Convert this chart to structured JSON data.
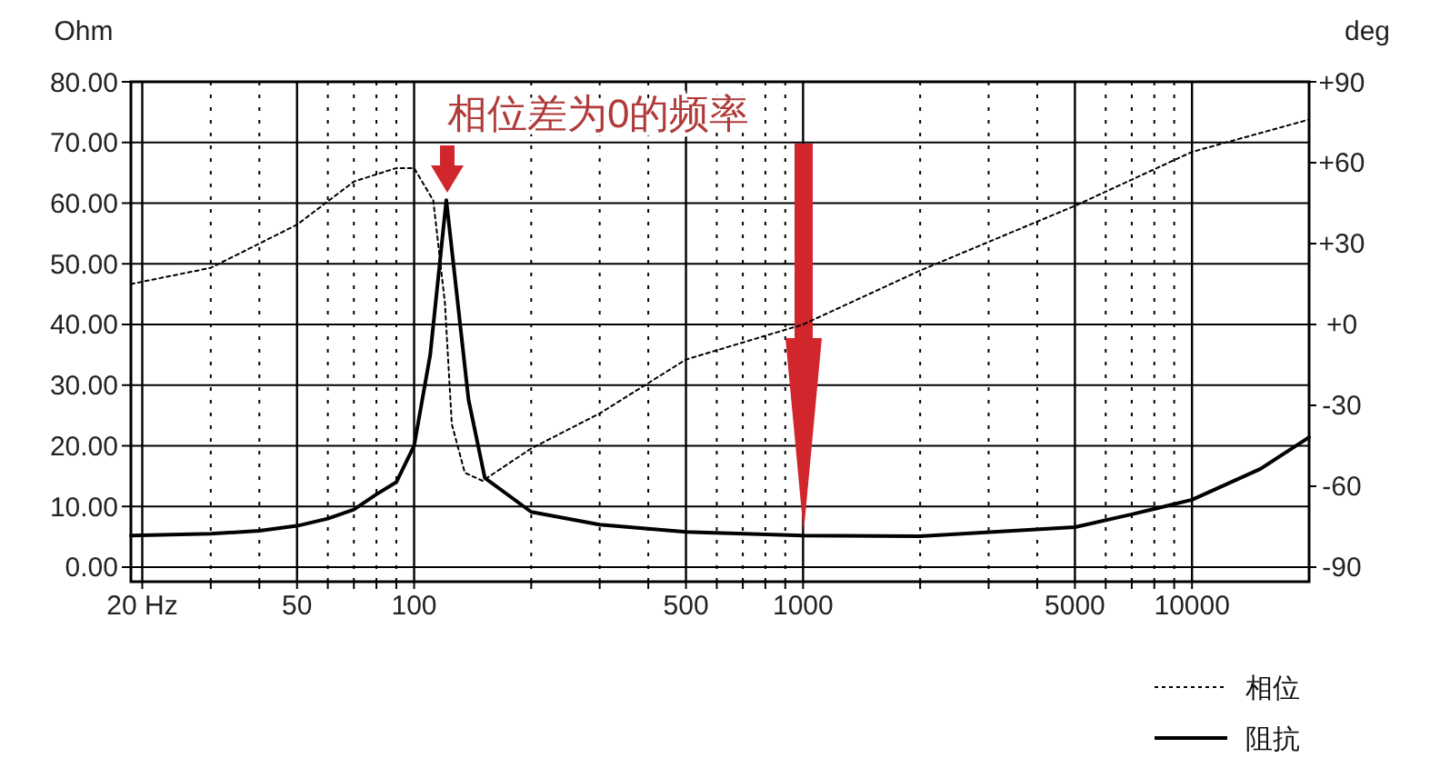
{
  "chart_data": {
    "type": "line",
    "ylabel": "Ohm",
    "y2label": "deg",
    "log": "x",
    "xlim": [
      18.7,
      20000
    ],
    "xticks": [
      {
        "value": 20,
        "label": "20 Hz"
      },
      {
        "value": 30,
        "label": null
      },
      {
        "value": 40,
        "label": null
      },
      50,
      {
        "value": 60,
        "label": null
      },
      {
        "value": 70,
        "label": null
      },
      {
        "value": 80,
        "label": null
      },
      {
        "value": 90,
        "label": null
      },
      100,
      {
        "value": 200,
        "label": null
      },
      {
        "value": 300,
        "label": null
      },
      {
        "value": 400,
        "label": null
      },
      500,
      {
        "value": 600,
        "label": null
      },
      {
        "value": 700,
        "label": null
      },
      {
        "value": 800,
        "label": null
      },
      {
        "value": 900,
        "label": null
      },
      1000,
      {
        "value": 2000,
        "label": null
      },
      {
        "value": 3000,
        "label": null
      },
      {
        "value": 4000,
        "label": null
      },
      5000,
      {
        "value": 6000,
        "label": null
      },
      {
        "value": 7000,
        "label": null
      },
      {
        "value": 8000,
        "label": null
      },
      {
        "value": 9000,
        "label": null
      },
      10000
    ],
    "ylim": [
      -2.4,
      80
    ],
    "yticks": [
      {
        "value": 0,
        "label": "0.00"
      },
      {
        "value": 10,
        "label": "10.00"
      },
      {
        "value": 20,
        "label": "20.00"
      },
      {
        "value": 30,
        "label": "30.00"
      },
      {
        "value": 40,
        "label": "40.00"
      },
      {
        "value": 50,
        "label": "50.00"
      },
      {
        "value": 60,
        "label": "60.00"
      },
      {
        "value": 70,
        "label": "70.00"
      },
      {
        "value": 80,
        "label": "80.00"
      }
    ],
    "y2lim": [
      -95.4,
      90
    ],
    "y2ticks": [
      {
        "value": 90,
        "label": "+90"
      },
      {
        "value": 60,
        "label": "+60"
      },
      {
        "value": 30,
        "label": "+30"
      },
      {
        "value": 0,
        "label": "+0"
      },
      -30,
      -60,
      -90
    ],
    "grid": true,
    "legend": "bottom right",
    "annotations": [
      "相位差为0的频率"
    ],
    "series": [
      {
        "name": "相位",
        "color": "#000000",
        "axis": "y2",
        "line_style": "dotted",
        "x": [
          18.7,
          30,
          50,
          70,
          90,
          100,
          112,
          120,
          125,
          135,
          150,
          200,
          300,
          500,
          1000,
          2000,
          5000,
          10000,
          20000
        ],
        "values": [
          15,
          21,
          37,
          53,
          58,
          58,
          46,
          8,
          -37,
          -55,
          -58,
          -46,
          -33,
          -13,
          0,
          20,
          44,
          64,
          76
        ]
      },
      {
        "name": "阻抗",
        "color": "#000000",
        "line_style": "solid",
        "x": [
          18.7,
          30,
          40,
          50,
          60,
          70,
          80,
          90,
          100,
          110,
          121,
          138,
          152,
          200,
          300,
          500,
          1000,
          2000,
          5000,
          7000,
          10000,
          15000,
          20000
        ],
        "values": [
          5.2,
          5.5,
          6,
          6.8,
          8,
          9.5,
          12,
          14,
          20,
          35,
          60.5,
          27.6,
          14.7,
          9.1,
          7,
          5.8,
          5.2,
          5.1,
          6.6,
          8.7,
          11.1,
          16.2,
          21.4
        ]
      }
    ]
  }
}
